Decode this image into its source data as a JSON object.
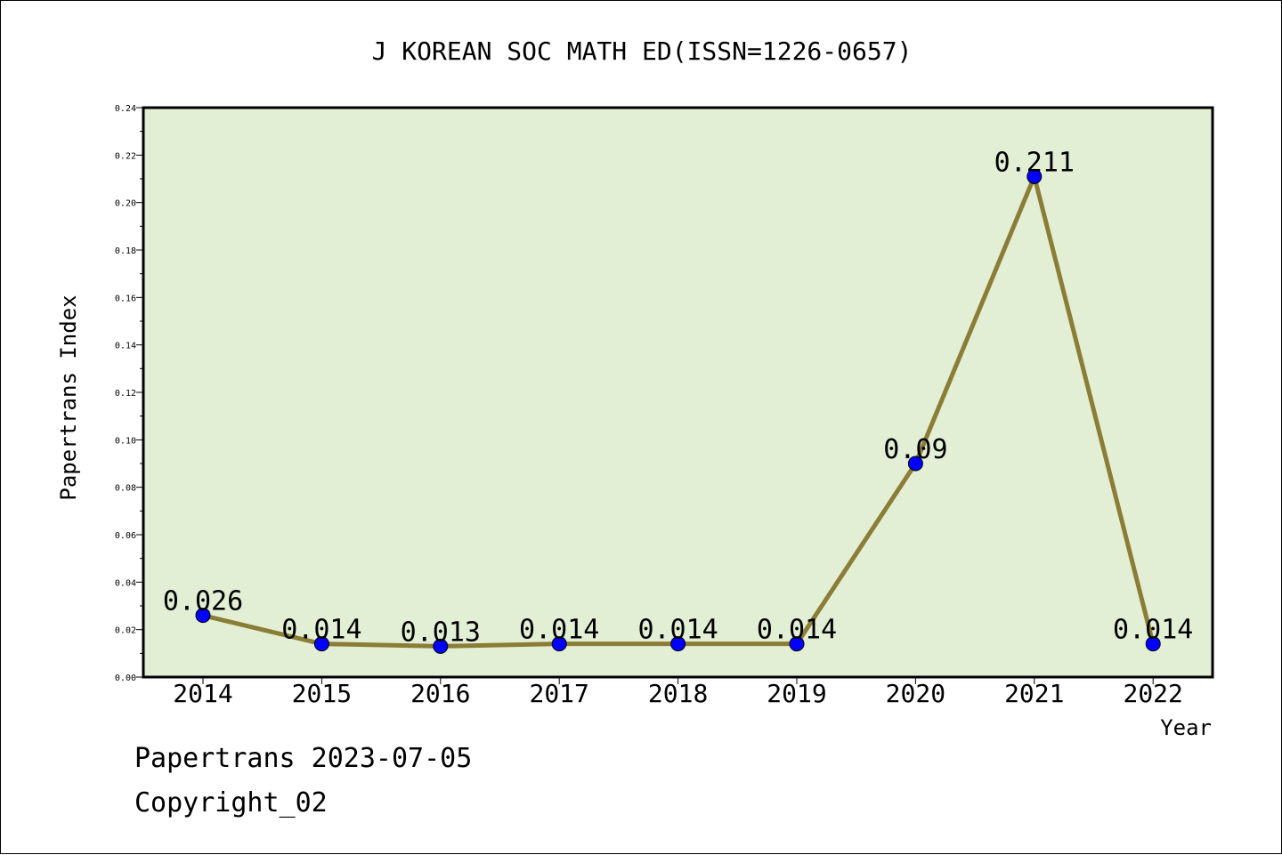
{
  "chart_data": {
    "type": "line",
    "title": "J KOREAN SOC MATH ED(ISSN=1226-0657)",
    "xlabel": "Year",
    "ylabel": "Papertrans Index",
    "categories": [
      "2014",
      "2015",
      "2016",
      "2017",
      "2018",
      "2019",
      "2020",
      "2021",
      "2022"
    ],
    "series": [
      {
        "values": [
          0.026,
          0.014,
          0.013,
          0.014,
          0.014,
          0.014,
          0.09,
          0.211,
          0.014
        ],
        "labels": [
          "0.026",
          "0.014",
          "0.013",
          "0.014",
          "0.014",
          "0.014",
          "0.09",
          "0.211",
          "0.014"
        ]
      }
    ],
    "ylim": [
      0,
      0.24
    ],
    "yticks": [
      "0.00",
      "0.02",
      "0.04",
      "0.06",
      "0.08",
      "0.10",
      "0.12",
      "0.14",
      "0.16",
      "0.18",
      "0.20",
      "0.22",
      "0.24"
    ],
    "grid": false,
    "colors": {
      "plot_background": "#e2efd5",
      "line": "#8b7d35",
      "marker": "#0000ff"
    }
  },
  "footer": {
    "date_line": "Papertrans 2023-07-05",
    "copyright": "Copyright_02"
  }
}
